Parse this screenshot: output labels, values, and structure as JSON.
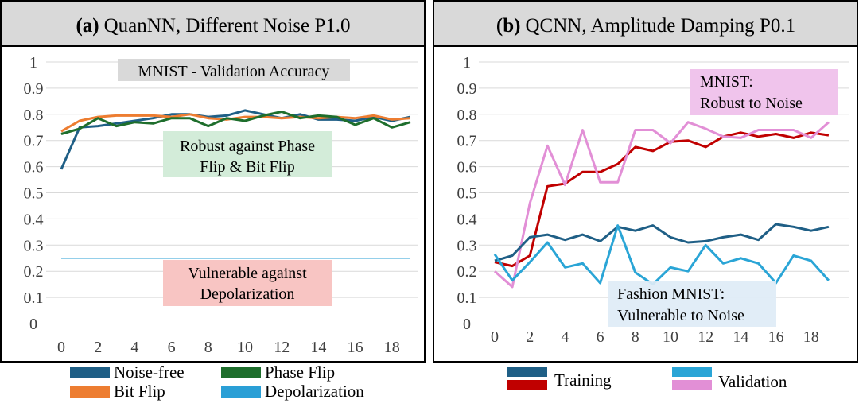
{
  "chart_data": [
    {
      "type": "line",
      "panel_label": "(a)",
      "title": "QuanNN, Different Noise P1.0",
      "x": [
        0,
        1,
        2,
        3,
        4,
        5,
        6,
        7,
        8,
        9,
        10,
        11,
        12,
        13,
        14,
        15,
        16,
        17,
        18,
        19
      ],
      "x_ticks": [
        "0",
        "2",
        "4",
        "6",
        "8",
        "10",
        "12",
        "14",
        "16",
        "18"
      ],
      "y_ticks": [
        "0",
        "0.1",
        "0.2",
        "0.3",
        "0.4",
        "0.5",
        "0.6",
        "0.7",
        "0.8",
        "0.9",
        "1"
      ],
      "ylim": [
        0,
        1
      ],
      "grid": true,
      "series": [
        {
          "name": "Noise-free",
          "color": "#1f5f86",
          "values": [
            0.59,
            0.75,
            0.755,
            0.765,
            0.775,
            0.785,
            0.8,
            0.8,
            0.79,
            0.795,
            0.815,
            0.8,
            0.785,
            0.8,
            0.78,
            0.78,
            0.775,
            0.79,
            0.775,
            0.79
          ]
        },
        {
          "name": "Bit Flip",
          "color": "#ed7d31",
          "values": [
            0.735,
            0.775,
            0.79,
            0.795,
            0.795,
            0.795,
            0.79,
            0.8,
            0.785,
            0.78,
            0.79,
            0.79,
            0.785,
            0.79,
            0.785,
            0.79,
            0.785,
            0.795,
            0.78,
            0.785
          ]
        },
        {
          "name": "Phase Flip",
          "color": "#1e6e2c",
          "values": [
            0.725,
            0.745,
            0.785,
            0.755,
            0.77,
            0.765,
            0.785,
            0.785,
            0.755,
            0.785,
            0.775,
            0.795,
            0.81,
            0.785,
            0.795,
            0.79,
            0.76,
            0.785,
            0.75,
            0.77
          ]
        },
        {
          "name": "Depolarization",
          "color": "#2a9fd6",
          "values": [
            0.25,
            0.25,
            0.25,
            0.25,
            0.25,
            0.25,
            0.25,
            0.25,
            0.25,
            0.25,
            0.25,
            0.25,
            0.25,
            0.25,
            0.25,
            0.25,
            0.25,
            0.25,
            0.25,
            0.25
          ]
        }
      ],
      "annotations": [
        {
          "text": "MNIST - Validation Accuracy"
        },
        {
          "text": "Robust against Phase Flip & Bit Flip"
        },
        {
          "text": "Vulnerable against Depolarization"
        }
      ]
    },
    {
      "type": "line",
      "panel_label": "(b)",
      "title": "QCNN, Amplitude Damping P0.1",
      "x": [
        0,
        1,
        2,
        3,
        4,
        5,
        6,
        7,
        8,
        9,
        10,
        11,
        12,
        13,
        14,
        15,
        16,
        17,
        18,
        19
      ],
      "x_ticks": [
        "0",
        "2",
        "4",
        "6",
        "8",
        "10",
        "12",
        "14",
        "16",
        "18"
      ],
      "y_ticks": [
        "0",
        "0.1",
        "0.2",
        "0.3",
        "0.4",
        "0.5",
        "0.6",
        "0.7",
        "0.8",
        "0.9",
        "1"
      ],
      "ylim": [
        0,
        1
      ],
      "grid": true,
      "series": [
        {
          "name": "MNIST Training",
          "color": "#c00000",
          "values": [
            0.235,
            0.22,
            0.26,
            0.525,
            0.535,
            0.58,
            0.58,
            0.61,
            0.675,
            0.66,
            0.695,
            0.7,
            0.675,
            0.715,
            0.73,
            0.715,
            0.725,
            0.71,
            0.73,
            0.72
          ]
        },
        {
          "name": "MNIST Validation",
          "color": "#e28fd6",
          "values": [
            0.2,
            0.14,
            0.46,
            0.68,
            0.53,
            0.74,
            0.54,
            0.54,
            0.74,
            0.74,
            0.69,
            0.77,
            0.745,
            0.715,
            0.71,
            0.74,
            0.74,
            0.74,
            0.71,
            0.77
          ]
        },
        {
          "name": "Fashion MNIST Training",
          "color": "#1f5f86",
          "values": [
            0.24,
            0.26,
            0.33,
            0.34,
            0.32,
            0.34,
            0.315,
            0.37,
            0.355,
            0.375,
            0.33,
            0.31,
            0.315,
            0.33,
            0.34,
            0.32,
            0.38,
            0.37,
            0.355,
            0.37
          ]
        },
        {
          "name": "Fashion MNIST Validation",
          "color": "#2aa5d6",
          "values": [
            0.265,
            0.165,
            0.235,
            0.31,
            0.215,
            0.23,
            0.155,
            0.375,
            0.195,
            0.15,
            0.215,
            0.2,
            0.3,
            0.23,
            0.25,
            0.23,
            0.155,
            0.26,
            0.24,
            0.165
          ]
        }
      ],
      "annotations": [
        {
          "text": "MNIST:"
        },
        {
          "text": "Robust to Noise"
        },
        {
          "text": "Fashion MNIST:"
        },
        {
          "text": "Vulnerable to Noise"
        }
      ]
    }
  ],
  "legend_a": [
    {
      "label": "Noise-free",
      "color": "#1f5f86"
    },
    {
      "label": "Phase Flip",
      "color": "#1e6e2c"
    },
    {
      "label": "Bit Flip",
      "color": "#ed7d31"
    },
    {
      "label": "Depolarization",
      "color": "#2a9fd6"
    }
  ],
  "legend_b": [
    {
      "label": "Training",
      "colors": [
        "#1f5f86",
        "#c00000"
      ]
    },
    {
      "label": "Validation",
      "colors": [
        "#2aa5d6",
        "#e28fd6"
      ]
    }
  ]
}
